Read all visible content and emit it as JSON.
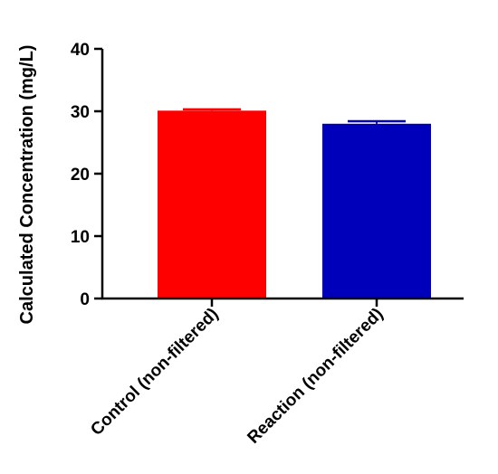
{
  "chart_data": {
    "type": "bar",
    "title": "",
    "xlabel": "",
    "ylabel": "Calculated Concentration (mg/L)",
    "categories": [
      "Control (non-filtered)",
      "Reaction (non-filtered)"
    ],
    "values": [
      30.1,
      28.0
    ],
    "error": [
      0.2,
      0.4
    ],
    "colors": [
      "#ff0000",
      "#0000bb"
    ],
    "ylim": [
      0,
      40
    ],
    "yticks": [
      0,
      10,
      20,
      30,
      40
    ],
    "grid": false,
    "legend": "none"
  }
}
